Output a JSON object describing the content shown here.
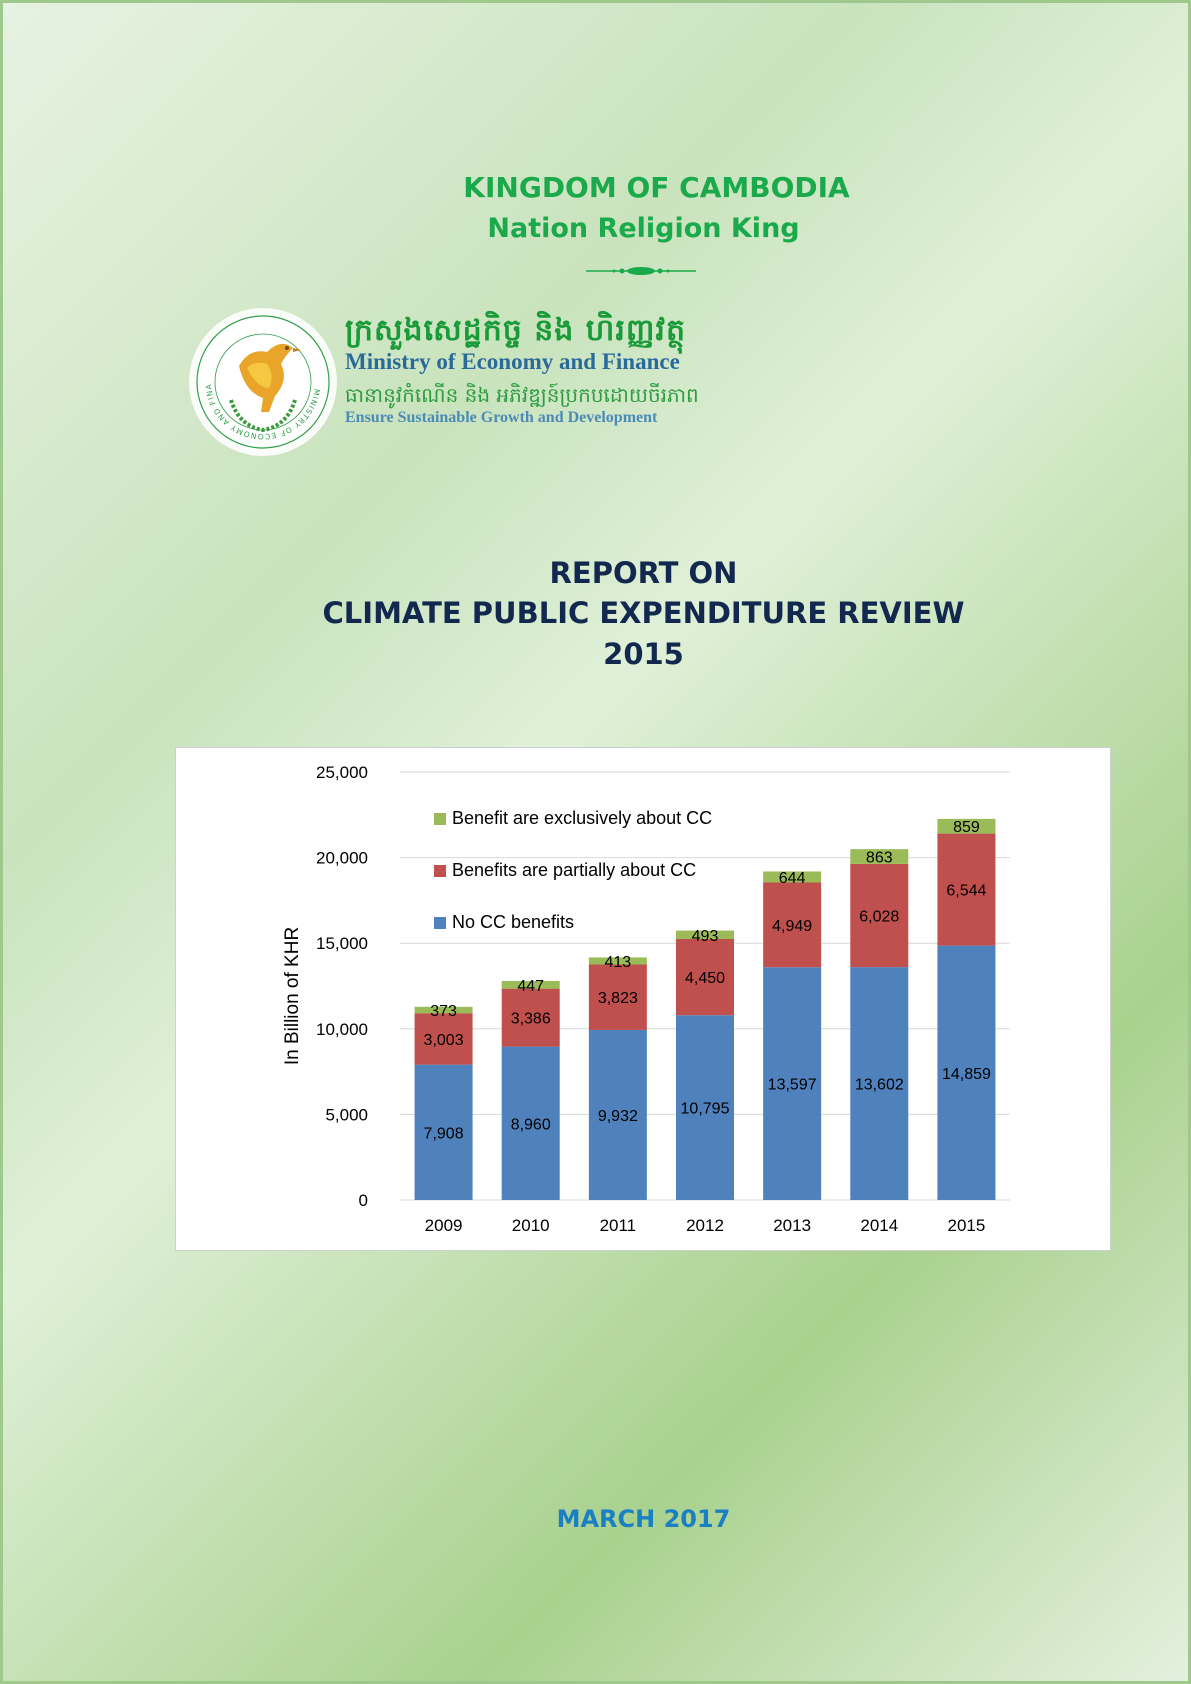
{
  "header": {
    "country": "KINGDOM OF CAMBODIA",
    "motto": "Nation Religion King"
  },
  "ministry": {
    "name_khmer": "ក្រសួងសេដ្ឋកិច្ច និង ហិរញ្ញវត្ថុ",
    "name_english": "Ministry of Economy and Finance",
    "slogan_khmer": "ធានានូវកំណើន និង អភិវឌ្ឍន៍ប្រកបដោយចីរភាព",
    "slogan_english": "Ensure Sustainable Growth and Development",
    "seal_text": "MINISTRY OF ECONOMY AND FINANCE"
  },
  "report": {
    "line1": "REPORT ON",
    "line2": "CLIMATE PUBLIC EXPENDITURE REVIEW",
    "line3": "2015"
  },
  "colors": {
    "no_cc": "#4f81bd",
    "partial": "#c0504d",
    "exclusive": "#9bbb59"
  },
  "chart_data": {
    "type": "bar",
    "stacked": true,
    "categories": [
      "2009",
      "2010",
      "2011",
      "2012",
      "2013",
      "2014",
      "2015"
    ],
    "series": [
      {
        "name": "No CC benefits",
        "values": [
          7908,
          8960,
          9932,
          10795,
          13597,
          13602,
          14859
        ]
      },
      {
        "name": "Benefits are partially about CC",
        "values": [
          3003,
          3386,
          3823,
          4450,
          4949,
          6028,
          6544
        ]
      },
      {
        "name": "Benefit are exclusively about CC",
        "values": [
          373,
          447,
          413,
          493,
          644,
          863,
          859
        ]
      }
    ],
    "ylabel": "In Billion of KHR",
    "ylim": [
      0,
      25000
    ],
    "yticks": [
      "0",
      "5,000",
      "10,000",
      "15,000",
      "20,000",
      "25,000"
    ],
    "ytick_values": [
      0,
      5000,
      10000,
      15000,
      20000,
      25000
    ],
    "grid": true,
    "legend_position": "top-left"
  },
  "footer": {
    "date": "MARCH 2017"
  }
}
